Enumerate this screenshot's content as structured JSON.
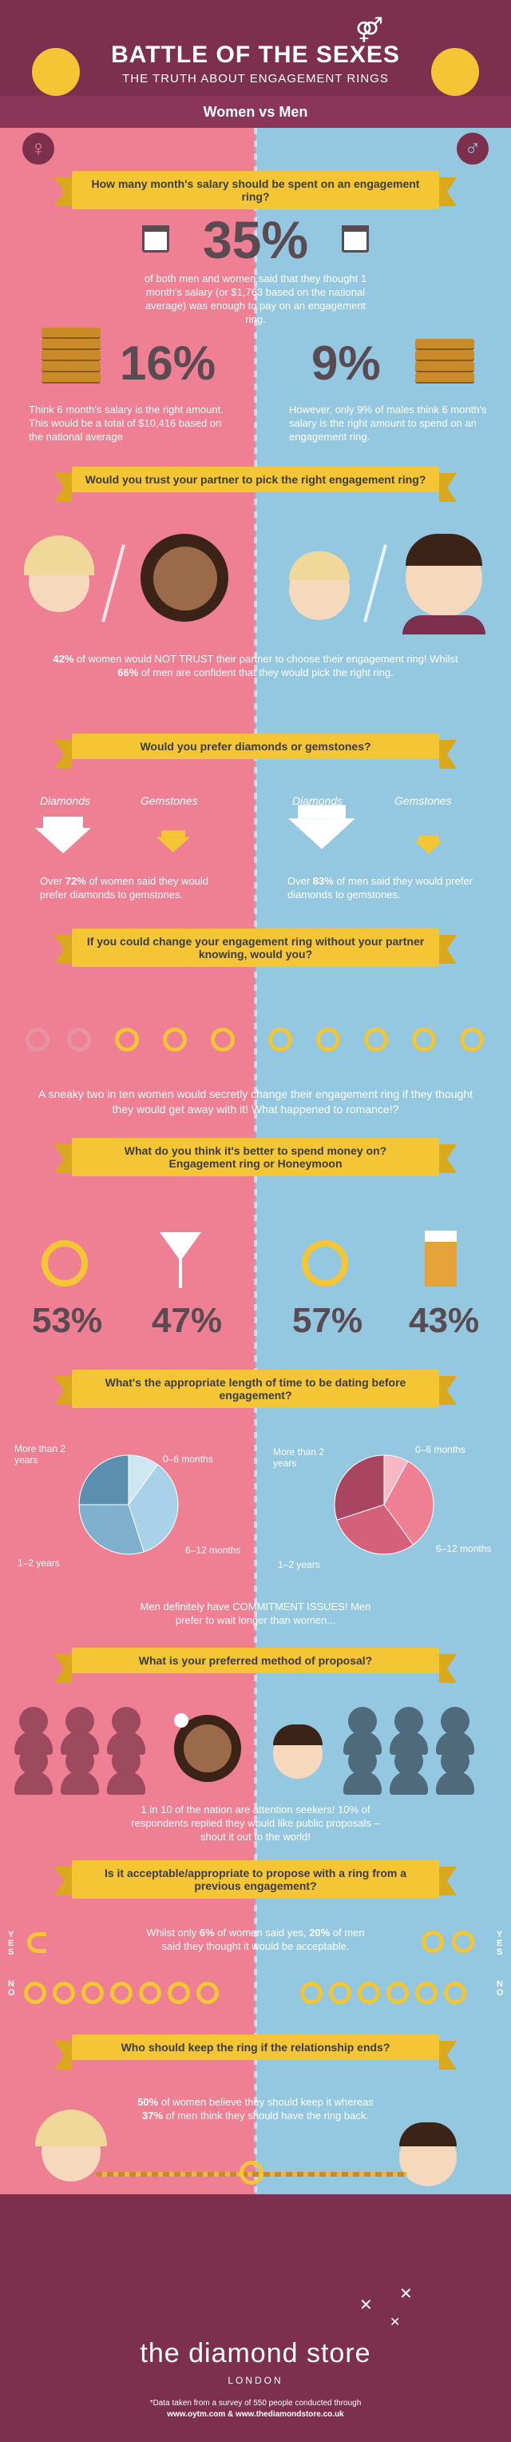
{
  "header": {
    "title": "BATTLE OF THE SEXES",
    "subtitle": "THE TRUTH ABOUT ENGAGEMENT RINGS",
    "versus": "Women vs Men",
    "female_symbol": "♀",
    "male_symbol": "♂"
  },
  "q1": {
    "question": "How many month's salary should be spent on an engagement ring?",
    "big_value": "35%",
    "text": "of both men and women said that they thought 1 month's salary (or $1,763 based on the national average) was enough to pay on an engagement ring.",
    "women_value": "16%",
    "women_text": "Think 6 month's salary is the right amount. This would be a total of $10,416 based on the national average",
    "men_value": "9%",
    "men_text": "However, only 9% of males think 6 month's salary is the right amount to spend on an engagement ring."
  },
  "q2": {
    "question": "Would you trust your partner to pick the right engagement ring?",
    "text_p1": "42%",
    "text_p2": " of women would NOT TRUST their partner to choose their engagement ring! Whilst ",
    "text_p3": "66%",
    "text_p4": " of men are confident that they would pick the right ring."
  },
  "q3": {
    "question": "Would you prefer diamonds or gemstones?",
    "diamonds_label": "Diamonds",
    "gemstones_label": "Gemstones",
    "women_p1": "Over ",
    "women_p2": "72%",
    "women_p3": " of women said they would prefer diamonds to gemstones.",
    "men_p1": "Over ",
    "men_p2": "83%",
    "men_p3": " of men said they would prefer diamonds to gemstones."
  },
  "q4": {
    "question": "If you could change your engagement ring without your partner knowing, would you?",
    "text": "A sneaky two in ten women would secretly change their engagement ring if they thought they would get away with it! What happened to romance!?"
  },
  "q5": {
    "question_l1": "What do you think it's better to spend money on?",
    "question_l2": "Engagement ring or Honeymoon",
    "women_ring": "53%",
    "women_honeymoon": "47%",
    "men_ring": "57%",
    "men_honeymoon": "43%"
  },
  "q6": {
    "question": "What's the appropriate length of time to be dating before engagement?",
    "labels": [
      "0–6 months",
      "6–12 months",
      "1–2 years",
      "More than 2 years"
    ],
    "text": "Men definitely have COMMITMENT ISSUES! Men prefer to wait longer than women..."
  },
  "chart_data": [
    {
      "type": "pie",
      "title": "",
      "categories": [
        "0–6 months",
        "6–12 months",
        "1–2 years",
        "More than 2 years"
      ],
      "values": [
        10,
        35,
        30,
        25
      ],
      "colors": [
        "#cfe6f3",
        "#a9d2ea",
        "#7fb1cf",
        "#5a8fb0"
      ]
    },
    {
      "type": "pie",
      "title": "",
      "categories": [
        "0–6 months",
        "6–12 months",
        "1–2 years",
        "More than 2 years"
      ],
      "values": [
        8,
        32,
        30,
        30
      ],
      "colors": [
        "#f5b8c4",
        "#ef7f93",
        "#d4607a",
        "#a94560"
      ]
    }
  ],
  "q7": {
    "question": "What is your preferred method of proposal?",
    "text": "1 in 10 of the nation are attention seekers! 10% of respondents replied they would like public proposals – shout it out to the world!"
  },
  "q8": {
    "question": "Is it acceptable/appropriate to propose with a ring from a previous engagement?",
    "text_p1": "Whilst only ",
    "text_p2": "6%",
    "text_p3": " of women said yes, ",
    "text_p4": "20%",
    "text_p5": " of men said they thought it would be acceptable.",
    "yes": "Y E S",
    "no": "N O"
  },
  "q9": {
    "question": "Who should keep the ring if the relationship ends?",
    "text_p1": "50%",
    "text_p2": " of women believe they should keep it whereas ",
    "text_p3": "37%",
    "text_p4": " of men think they should have the ring back."
  },
  "footer": {
    "brand": "the diamond store",
    "city": "LONDON",
    "source_l1": "*Data taken from a survey of 550 people conducted through",
    "source_l2": "www.oytm.com & www.thediamondstore.co.uk"
  },
  "colors": {
    "pink": "#ef7f93",
    "blue": "#93c8e0",
    "plum": "#7d2f4e",
    "gold": "#f4c534"
  }
}
